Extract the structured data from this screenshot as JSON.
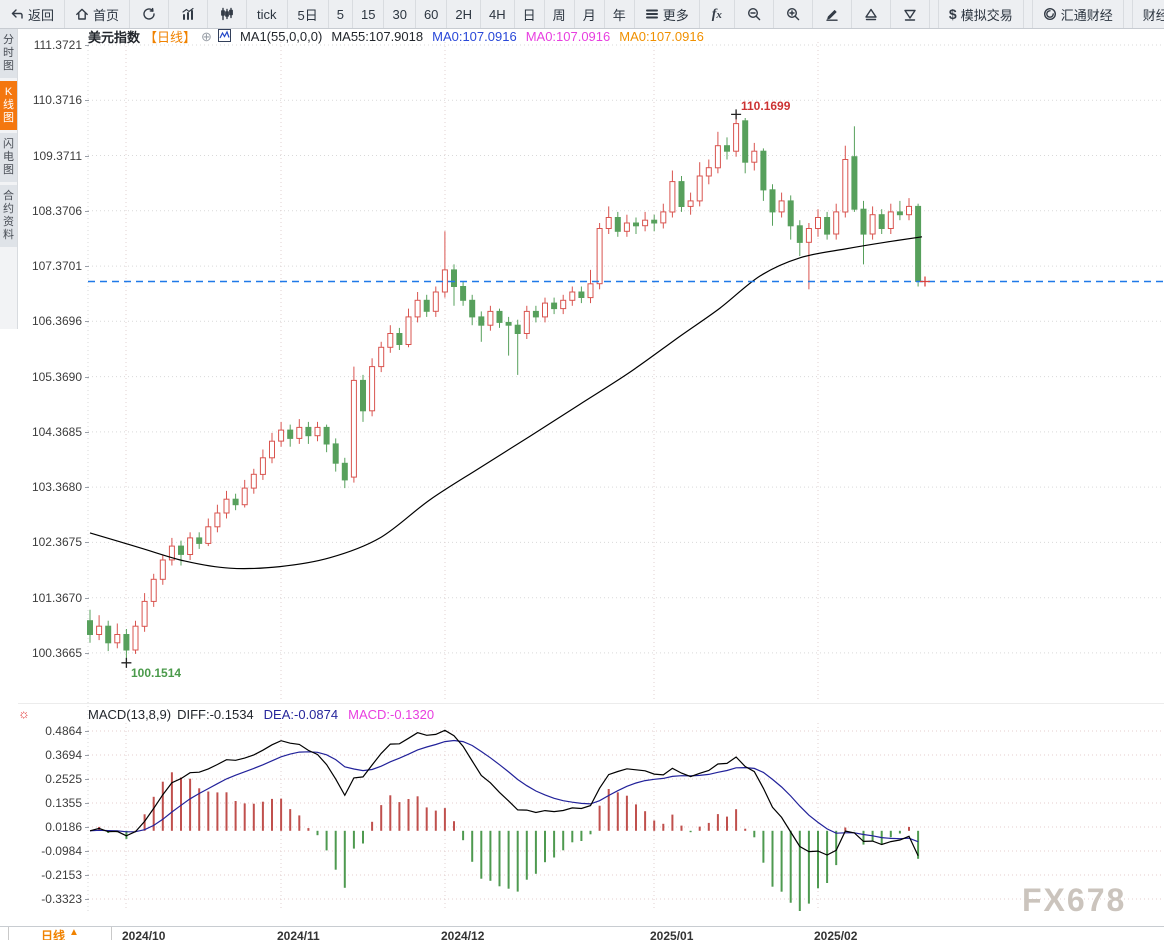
{
  "toolbar": {
    "items": [
      {
        "name": "back-button",
        "icon": "back-arrow-icon",
        "label": "返回"
      },
      {
        "name": "home-button",
        "icon": "home-icon",
        "label": "首页"
      },
      {
        "name": "refresh-button",
        "icon": "refresh-icon",
        "label": ""
      },
      {
        "name": "chart-type-trend-button",
        "icon": "bar-chart-icon",
        "label": ""
      },
      {
        "name": "chart-type-candle-button",
        "icon": "candlestick-icon",
        "label": ""
      },
      {
        "name": "interval-tick-button",
        "icon": "",
        "label": "tick"
      },
      {
        "name": "interval-5day-button",
        "icon": "",
        "label": "5日"
      },
      {
        "name": "interval-5min-button",
        "icon": "",
        "label": "5",
        "num": true
      },
      {
        "name": "interval-15min-button",
        "icon": "",
        "label": "15",
        "num": true
      },
      {
        "name": "interval-30min-button",
        "icon": "",
        "label": "30",
        "num": true
      },
      {
        "name": "interval-60min-button",
        "icon": "",
        "label": "60",
        "num": true
      },
      {
        "name": "interval-2h-button",
        "icon": "",
        "label": "2H",
        "num": true
      },
      {
        "name": "interval-4h-button",
        "icon": "",
        "label": "4H",
        "num": true
      },
      {
        "name": "interval-day-button",
        "icon": "",
        "label": "日",
        "num": true
      },
      {
        "name": "interval-week-button",
        "icon": "",
        "label": "周",
        "num": true
      },
      {
        "name": "interval-month-button",
        "icon": "",
        "label": "月",
        "num": true
      },
      {
        "name": "interval-year-button",
        "icon": "",
        "label": "年",
        "num": true
      },
      {
        "name": "more-button",
        "icon": "menu-icon",
        "label": "更多"
      },
      {
        "name": "indicator-fx-button",
        "icon": "fx-icon",
        "label": ""
      },
      {
        "name": "zoom-out-button",
        "icon": "zoom-out-icon",
        "label": ""
      },
      {
        "name": "zoom-in-button",
        "icon": "zoom-in-icon",
        "label": ""
      },
      {
        "name": "draw-button",
        "icon": "pencil-icon",
        "label": ""
      },
      {
        "name": "marker-up-button",
        "icon": "triangle-up-icon",
        "label": ""
      },
      {
        "name": "marker-down-button",
        "icon": "triangle-down-icon",
        "label": ""
      },
      {
        "name": "sim-trading-button",
        "icon": "dollar-icon",
        "label": "模拟交易",
        "gap": true
      },
      {
        "name": "huitong-button",
        "icon": "huitong-logo-icon",
        "label": "汇通财经",
        "gap": true
      },
      {
        "name": "calendar-button",
        "icon": "",
        "label": "财经",
        "gap": true
      }
    ]
  },
  "sidebar": {
    "tabs": [
      {
        "name": "tab-time-chart",
        "label": "分时图",
        "active": false
      },
      {
        "name": "tab-kline-chart",
        "label": "K线图",
        "active": true
      },
      {
        "name": "tab-lightning-chart",
        "label": "闪电图",
        "active": false
      },
      {
        "name": "tab-contract-info",
        "label": "合约资料",
        "active": false
      }
    ]
  },
  "chart_header": {
    "symbol": "美元指数",
    "period": "【日线】",
    "plus": "⊕",
    "ma_settings": "MA1(55,0,0,0)",
    "ma55": "MA55:107.9018",
    "ma0_blue": "MA0:107.0916",
    "ma0_magenta": "MA0:107.0916",
    "ma0_orange": "MA0:107.0916"
  },
  "macd_header": {
    "title": "MACD(13,8,9)",
    "diff": "DIFF:-0.1534",
    "dea": "DEA:-0.0874",
    "macd": "MACD:-0.1320",
    "sun": "☼"
  },
  "axes": {
    "price_labels": [
      "111.3721",
      "110.3716",
      "109.3711",
      "108.3706",
      "107.3701",
      "106.3696",
      "105.3690",
      "104.3685",
      "103.3680",
      "102.3675",
      "101.3670",
      "100.3665"
    ],
    "macd_labels": [
      "0.4864",
      "0.3694",
      "0.2525",
      "0.1355",
      "0.0186",
      "-0.0984",
      "-0.2153",
      "-0.3323"
    ],
    "months": [
      {
        "label": "2024/10",
        "x": 126
      },
      {
        "label": "2024/11",
        "x": 281
      },
      {
        "label": "2024/12",
        "x": 445
      },
      {
        "label": "2025/01",
        "x": 654
      },
      {
        "label": "2025/02",
        "x": 818
      }
    ]
  },
  "annotations": {
    "high": "110.1699",
    "low": "100.1514",
    "current_price": 107.0916
  },
  "bottom_bar": {
    "period_label": "日线",
    "arrow": "▲"
  },
  "watermark": "FX678",
  "colors": {
    "up": "#d9544f",
    "down": "#57a05c",
    "ma55": "#000000",
    "diff_line": "#000000",
    "dea_line": "#22229a",
    "hist_up": "#c0504d",
    "hist_down": "#4e9a50",
    "current_line": "#1f79e8",
    "current_cross": "#d9423f",
    "grid_main": "#d9d9d9",
    "grid_macd": "#e6cccc",
    "grid_vert": "#e0d0d0",
    "accent_orange": "#f08200"
  },
  "chart_data": {
    "type": "candlestick+macd",
    "symbol": "美元指数",
    "interval": "日线",
    "y_range": [
      100.3665,
      111.3721
    ],
    "macd_range": [
      -0.3323,
      0.4864
    ],
    "macd_params": [
      13,
      8,
      9
    ],
    "macd_current": {
      "diff": -0.1534,
      "dea": -0.0874,
      "macd": -0.132
    },
    "high_marker": {
      "value": 110.1699,
      "index": 71
    },
    "low_marker": {
      "value": 100.1514,
      "index": 4
    },
    "current_price": 107.0916,
    "candles": [
      [
        100.95,
        101.15,
        100.55,
        100.7
      ],
      [
        100.7,
        101.05,
        100.6,
        100.85
      ],
      [
        100.85,
        100.95,
        100.4,
        100.55
      ],
      [
        100.55,
        100.9,
        100.45,
        100.7
      ],
      [
        100.7,
        100.8,
        100.1514,
        100.42
      ],
      [
        100.42,
        100.95,
        100.35,
        100.85
      ],
      [
        100.85,
        101.45,
        100.75,
        101.3
      ],
      [
        101.3,
        101.8,
        101.2,
        101.7
      ],
      [
        101.7,
        102.15,
        101.6,
        102.05
      ],
      [
        102.05,
        102.45,
        101.95,
        102.3
      ],
      [
        102.3,
        102.4,
        101.95,
        102.15
      ],
      [
        102.15,
        102.55,
        102.05,
        102.45
      ],
      [
        102.45,
        102.55,
        102.25,
        102.35
      ],
      [
        102.35,
        102.8,
        102.3,
        102.65
      ],
      [
        102.65,
        103.05,
        102.55,
        102.9
      ],
      [
        102.9,
        103.3,
        102.8,
        103.15
      ],
      [
        103.15,
        103.25,
        102.95,
        103.05
      ],
      [
        103.05,
        103.5,
        103.0,
        103.35
      ],
      [
        103.35,
        103.7,
        103.25,
        103.6
      ],
      [
        103.6,
        104.05,
        103.5,
        103.9
      ],
      [
        103.9,
        104.35,
        103.8,
        104.2
      ],
      [
        104.2,
        104.55,
        104.1,
        104.4
      ],
      [
        104.4,
        104.5,
        104.1,
        104.25
      ],
      [
        104.25,
        104.6,
        104.15,
        104.45
      ],
      [
        104.45,
        104.55,
        104.15,
        104.3
      ],
      [
        104.3,
        104.55,
        104.2,
        104.45
      ],
      [
        104.45,
        104.5,
        104.0,
        104.15
      ],
      [
        104.15,
        104.25,
        103.65,
        103.8
      ],
      [
        103.8,
        103.9,
        103.35,
        103.5
      ],
      [
        103.55,
        105.55,
        103.45,
        105.3
      ],
      [
        105.3,
        105.4,
        104.55,
        104.75
      ],
      [
        104.75,
        105.7,
        104.65,
        105.55
      ],
      [
        105.55,
        106.0,
        105.45,
        105.9
      ],
      [
        105.9,
        106.3,
        105.8,
        106.15
      ],
      [
        106.15,
        106.25,
        105.85,
        105.95
      ],
      [
        105.95,
        106.6,
        105.9,
        106.45
      ],
      [
        106.45,
        106.9,
        106.35,
        106.75
      ],
      [
        106.75,
        106.85,
        106.45,
        106.55
      ],
      [
        106.55,
        107.0,
        106.45,
        106.9
      ],
      [
        106.9,
        108.0,
        106.8,
        107.3
      ],
      [
        107.3,
        107.4,
        106.65,
        107.0
      ],
      [
        107.0,
        107.1,
        106.65,
        106.75
      ],
      [
        106.75,
        106.85,
        106.3,
        106.45
      ],
      [
        106.45,
        106.55,
        106.0,
        106.3
      ],
      [
        106.3,
        106.65,
        106.2,
        106.55
      ],
      [
        106.55,
        106.6,
        106.25,
        106.35
      ],
      [
        106.35,
        106.45,
        105.75,
        106.3
      ],
      [
        106.3,
        106.4,
        105.4,
        106.15
      ],
      [
        106.15,
        106.65,
        106.05,
        106.55
      ],
      [
        106.55,
        106.65,
        106.35,
        106.45
      ],
      [
        106.45,
        106.8,
        106.35,
        106.7
      ],
      [
        106.7,
        106.8,
        106.5,
        106.6
      ],
      [
        106.6,
        106.85,
        106.5,
        106.75
      ],
      [
        106.75,
        107.0,
        106.65,
        106.9
      ],
      [
        106.9,
        107.0,
        106.7,
        106.8
      ],
      [
        106.8,
        107.3,
        106.7,
        107.05
      ],
      [
        107.05,
        108.15,
        106.95,
        108.05
      ],
      [
        108.05,
        108.45,
        107.95,
        108.25
      ],
      [
        108.25,
        108.35,
        107.9,
        108.0
      ],
      [
        108.0,
        108.3,
        107.9,
        108.15
      ],
      [
        108.15,
        108.25,
        107.95,
        108.1
      ],
      [
        108.1,
        108.35,
        108.0,
        108.2
      ],
      [
        108.2,
        108.3,
        108.0,
        108.15
      ],
      [
        108.15,
        108.5,
        108.05,
        108.35
      ],
      [
        108.35,
        109.1,
        108.25,
        108.9
      ],
      [
        108.9,
        109.0,
        108.35,
        108.45
      ],
      [
        108.45,
        108.7,
        108.3,
        108.55
      ],
      [
        108.55,
        109.25,
        108.45,
        109.0
      ],
      [
        109.0,
        109.3,
        108.85,
        109.15
      ],
      [
        109.15,
        109.8,
        109.05,
        109.55
      ],
      [
        109.55,
        109.7,
        109.3,
        109.45
      ],
      [
        109.45,
        110.1699,
        109.35,
        109.95
      ],
      [
        110.0,
        110.05,
        109.05,
        109.25
      ],
      [
        109.25,
        109.6,
        109.1,
        109.45
      ],
      [
        109.45,
        109.5,
        108.55,
        108.75
      ],
      [
        108.75,
        108.85,
        108.1,
        108.35
      ],
      [
        108.35,
        108.7,
        108.25,
        108.55
      ],
      [
        108.55,
        108.65,
        107.85,
        108.1
      ],
      [
        108.1,
        108.2,
        107.55,
        107.8
      ],
      [
        107.8,
        108.15,
        106.95,
        108.05
      ],
      [
        108.05,
        108.4,
        107.9,
        108.25
      ],
      [
        108.25,
        108.35,
        107.85,
        107.95
      ],
      [
        107.95,
        108.5,
        107.85,
        108.35
      ],
      [
        108.35,
        109.55,
        108.25,
        109.3
      ],
      [
        109.35,
        109.9,
        108.35,
        108.4
      ],
      [
        108.4,
        108.55,
        107.4,
        107.95
      ],
      [
        107.95,
        108.45,
        107.85,
        108.3
      ],
      [
        108.3,
        108.4,
        107.95,
        108.05
      ],
      [
        108.05,
        108.5,
        107.95,
        108.35
      ],
      [
        108.35,
        108.55,
        108.2,
        108.3
      ],
      [
        108.3,
        108.6,
        108.2,
        108.45
      ],
      [
        108.45,
        108.5,
        107.0,
        107.0916
      ]
    ],
    "ma55_points": [
      [
        90,
        102.54
      ],
      [
        140,
        102.27
      ],
      [
        185,
        102.03
      ],
      [
        230,
        101.9
      ],
      [
        280,
        101.93
      ],
      [
        330,
        102.09
      ],
      [
        380,
        102.45
      ],
      [
        430,
        103.14
      ],
      [
        480,
        103.72
      ],
      [
        530,
        104.29
      ],
      [
        580,
        104.87
      ],
      [
        630,
        105.45
      ],
      [
        680,
        106.1
      ],
      [
        720,
        106.61
      ],
      [
        760,
        107.19
      ],
      [
        800,
        107.52
      ],
      [
        845,
        107.68
      ],
      [
        885,
        107.8
      ],
      [
        922,
        107.9
      ]
    ]
  }
}
